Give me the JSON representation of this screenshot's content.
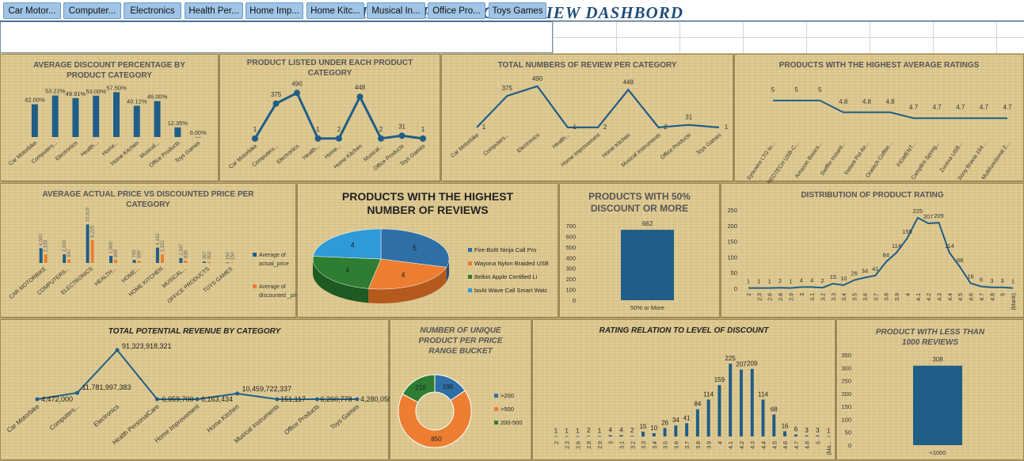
{
  "dashboard_title": "AMAZON  PRODUCT REVIEW DASHBORD",
  "slicer": {
    "items": [
      "Car Motor...",
      "Computer...",
      "Electronics",
      "Health Per...",
      "Home Imp...",
      "Home Kitc...",
      "Musical In...",
      "Office Pro...",
      "Toys Games"
    ]
  },
  "colors": {
    "navy": "#1f5e86",
    "orange": "#ed7d31",
    "green": "#2e7d32",
    "sky": "#2e9ad8",
    "header": "#1f4e79",
    "text": "#333333"
  },
  "chart_data": [
    {
      "id": "c1",
      "type": "bar",
      "title": "AVERAGE DISCOUNT PERCENTAGE BY PRODUCT CATEGORY",
      "categories": [
        "Car Motorbike",
        "Computers...",
        "Electronics",
        "Health...",
        "Home...",
        "Home Kitchen",
        "Musical...",
        "Office Products",
        "Toys Games"
      ],
      "values": [
        42.0,
        53.22,
        49.91,
        53.0,
        57.5,
        40.12,
        46.0,
        12.35,
        0.0
      ],
      "labels": [
        "42.00%",
        "53.22%",
        "49.91%",
        "53.00%",
        "57.50%",
        "40.12%",
        "46.00%",
        "12.35%",
        "0.00%"
      ],
      "ylim": [
        0,
        65
      ]
    },
    {
      "id": "c2",
      "type": "line",
      "title": "PRODUCT LISTED UNDER EACH PRODUCT CATEGORY",
      "categories": [
        "Car Motorbike",
        "Computers...",
        "Electronics",
        "Health...",
        "Home...",
        "Home Kitchen",
        "Musical...",
        "Office Products",
        "Toys Games"
      ],
      "values": [
        1,
        375,
        490,
        1,
        2,
        448,
        2,
        31,
        1
      ],
      "ylim": [
        0,
        560
      ]
    },
    {
      "id": "c3",
      "type": "line",
      "title": "TOTAL NUMBERS OF REVIEW PER CATEGORY",
      "categories": [
        "Car Motorbike",
        "Computers...",
        "Electronics",
        "Health...",
        "Home Improvement",
        "Home Kitchen",
        "Musical Instruments",
        "Office Products",
        "Toys Games"
      ],
      "values": [
        1,
        375,
        490,
        1,
        2,
        448,
        2,
        31,
        1
      ],
      "ylim": [
        0,
        620
      ]
    },
    {
      "id": "c4",
      "type": "line",
      "title": "PRODUCTS WITH THE HIGHEST AVERAGE RATINGS",
      "categories": [
        "Syncwire LTG to...",
        "REDTECH USB-C...",
        "Amazon Basics...",
        "Swiffer Instant...",
        "Instant Pot Air...",
        "Oratech Coffee...",
        "FIGMENT...",
        "Campfire Spring...",
        "Zuvexa USB...",
        "Sony Bravia 164...",
        "Multifunctional 2..."
      ],
      "values": [
        5,
        5,
        5,
        4.8,
        4.8,
        4.8,
        4.7,
        4.7,
        4.7,
        4.7,
        4.7
      ],
      "labels": [
        "5",
        "5",
        "5",
        "4.8",
        "4.8",
        "4.8",
        "4.7",
        "4.7",
        "4.7",
        "4.7",
        "4.7"
      ],
      "ylim": [
        4.3,
        5.2
      ]
    },
    {
      "id": "c5",
      "type": "bar",
      "title": "AVERAGE ACTUAL PRICE VS DISCOUNTED PRICE PER CATEGORY",
      "categories": [
        "CAR MOTORBIKE",
        "COMPUTERS...",
        "ELECTRONICS",
        "HEALTH...",
        "HOME...",
        "HOME KITCHEN",
        "MUSICAL...",
        "OFFICE PRODUCTS",
        "TOYS GAMES"
      ],
      "series": [
        {
          "name": "Average of actual_price",
          "values": [
            4000,
            2339,
            10419,
            1900,
            799,
            4162,
            1347,
            397,
            150
          ],
          "labels": [
            "4,000",
            "2,339",
            "10,419",
            "1,900",
            "799",
            "4,162",
            "1,347",
            "397",
            "150"
          ]
        },
        {
          "name": "Average of discounted _price",
          "values": [
            2339,
            947,
            6225,
            899,
            599,
            2331,
            638,
            302,
            150
          ],
          "labels": [
            "2,339",
            "947",
            "6,225",
            "899",
            "599",
            "2,331",
            "638",
            "302",
            "150"
          ]
        }
      ],
      "ylim": [
        0,
        12000
      ]
    },
    {
      "id": "c6",
      "type": "pie",
      "title": "PRODUCTS WITH THE HIGHEST NUMBER OF REVIEWS",
      "categories": [
        "Fire-Boltt Ninja Call Pro",
        "Wayona Nylon Braided USB",
        "Belkin Apple Certified Li",
        "boAt Wave Call Smart Watc"
      ],
      "values": [
        5,
        4,
        4,
        4
      ],
      "labels": [
        "5",
        "4",
        "4",
        "4"
      ]
    },
    {
      "id": "c7",
      "type": "bar",
      "title": "PRODUCTS WITH 50% DISCOUNT OR MORE",
      "categories": [
        "50% or More"
      ],
      "values": [
        662
      ],
      "labels": [
        "662"
      ],
      "ylim": [
        0,
        700
      ],
      "yticks": [
        "0",
        "100",
        "200",
        "300",
        "400",
        "500",
        "600",
        "700"
      ]
    },
    {
      "id": "c8",
      "type": "line",
      "title": "DISTRIBUTION OF PRODUCT RATING",
      "categories": [
        "2",
        "2.3",
        "2.6",
        "2.8",
        "2.9",
        "3",
        "3.1",
        "3.2",
        "3.3",
        "3.4",
        "3.5",
        "3.6",
        "3.7",
        "3.8",
        "3.9",
        "4",
        "4.1",
        "4.2",
        "4.3",
        "4.4",
        "4.5",
        "4.6",
        "4.7",
        "4.8",
        "5",
        "(blank)"
      ],
      "values": [
        1,
        1,
        1,
        2,
        1,
        4,
        4,
        2,
        15,
        10,
        26,
        34,
        41,
        84,
        114,
        159,
        225,
        207,
        209,
        114,
        68,
        16,
        6,
        3,
        3,
        1
      ],
      "labels": [
        "1",
        "1",
        "1",
        "2",
        "1",
        "4",
        "4",
        "2",
        "15",
        "10",
        "26",
        "34",
        "41",
        "84",
        "114",
        "159",
        "225",
        "207",
        "209",
        "114",
        "68",
        "16",
        "6",
        "3",
        "3",
        "1"
      ],
      "ylim": [
        0,
        250
      ],
      "yticks": [
        "0",
        "50",
        "100",
        "150",
        "200",
        "250"
      ]
    },
    {
      "id": "c9",
      "type": "line",
      "title": "TOTAL POTENTIAL REVENUE BY CATEGORY",
      "categories": [
        "Car Motorbike",
        "Computers...",
        "Electronics",
        "Health PersonalCare",
        "Home Improvement",
        "Home Kitchen",
        "Musical Instruments",
        "Office Products",
        "Toys Games"
      ],
      "values": [
        4472000,
        11781997383,
        91323918321,
        6959700,
        6163434,
        10459722337,
        151117,
        6260778,
        4280050
      ],
      "labels": [
        "4,472,000",
        "11,781,997,383",
        "91,323,918,321",
        "6,959,700",
        "6,163,434",
        "10,459,722,337",
        "151,117",
        "6,260,778",
        "4,280,050"
      ]
    },
    {
      "id": "c10",
      "type": "pie",
      "title": "NUMBER OF UNIQUE PRODUCT PER PRICE RANGE BUCKET",
      "categories": [
        ">200",
        ">500",
        "200-500"
      ],
      "values": [
        196,
        850,
        218
      ],
      "labels": [
        "196",
        "850",
        "218"
      ]
    },
    {
      "id": "c11",
      "type": "bar",
      "title": "RATING RELATION TO LEVEL OF DISCOUNT",
      "categories": [
        "2",
        "2.3",
        "2.6",
        "2.8",
        "2.9",
        "3",
        "3.1",
        "3.2",
        "3.3",
        "3.4",
        "3.5",
        "3.6",
        "3.7",
        "3.8",
        "3.9",
        "4",
        "4.1",
        "4.2",
        "4.3",
        "4.4",
        "4.5",
        "4.6",
        "4.7",
        "4.8",
        "5",
        "(bla..."
      ],
      "values": [
        1,
        1,
        1,
        2,
        1,
        4,
        4,
        2,
        15,
        10,
        26,
        34,
        41,
        84,
        114,
        159,
        225,
        207,
        209,
        114,
        68,
        16,
        6,
        3,
        3,
        1
      ],
      "labels": [
        "1",
        "1",
        "1",
        "2",
        "1",
        "4",
        "4",
        "2",
        "15",
        "10",
        "26",
        "34",
        "41",
        "84",
        "114",
        "159",
        "225",
        "207",
        "209",
        "114",
        "68",
        "16",
        "6",
        "3",
        "3",
        "1"
      ],
      "ylim": [
        0,
        250
      ]
    },
    {
      "id": "c12",
      "type": "bar",
      "title": "PRODUCT WITH LESS THAN 1000 REVIEWS",
      "categories": [
        "<1000"
      ],
      "values": [
        308
      ],
      "labels": [
        "308"
      ],
      "ylim": [
        0,
        350
      ],
      "yticks": [
        "0",
        "50",
        "100",
        "150",
        "200",
        "250",
        "300",
        "350"
      ]
    }
  ]
}
